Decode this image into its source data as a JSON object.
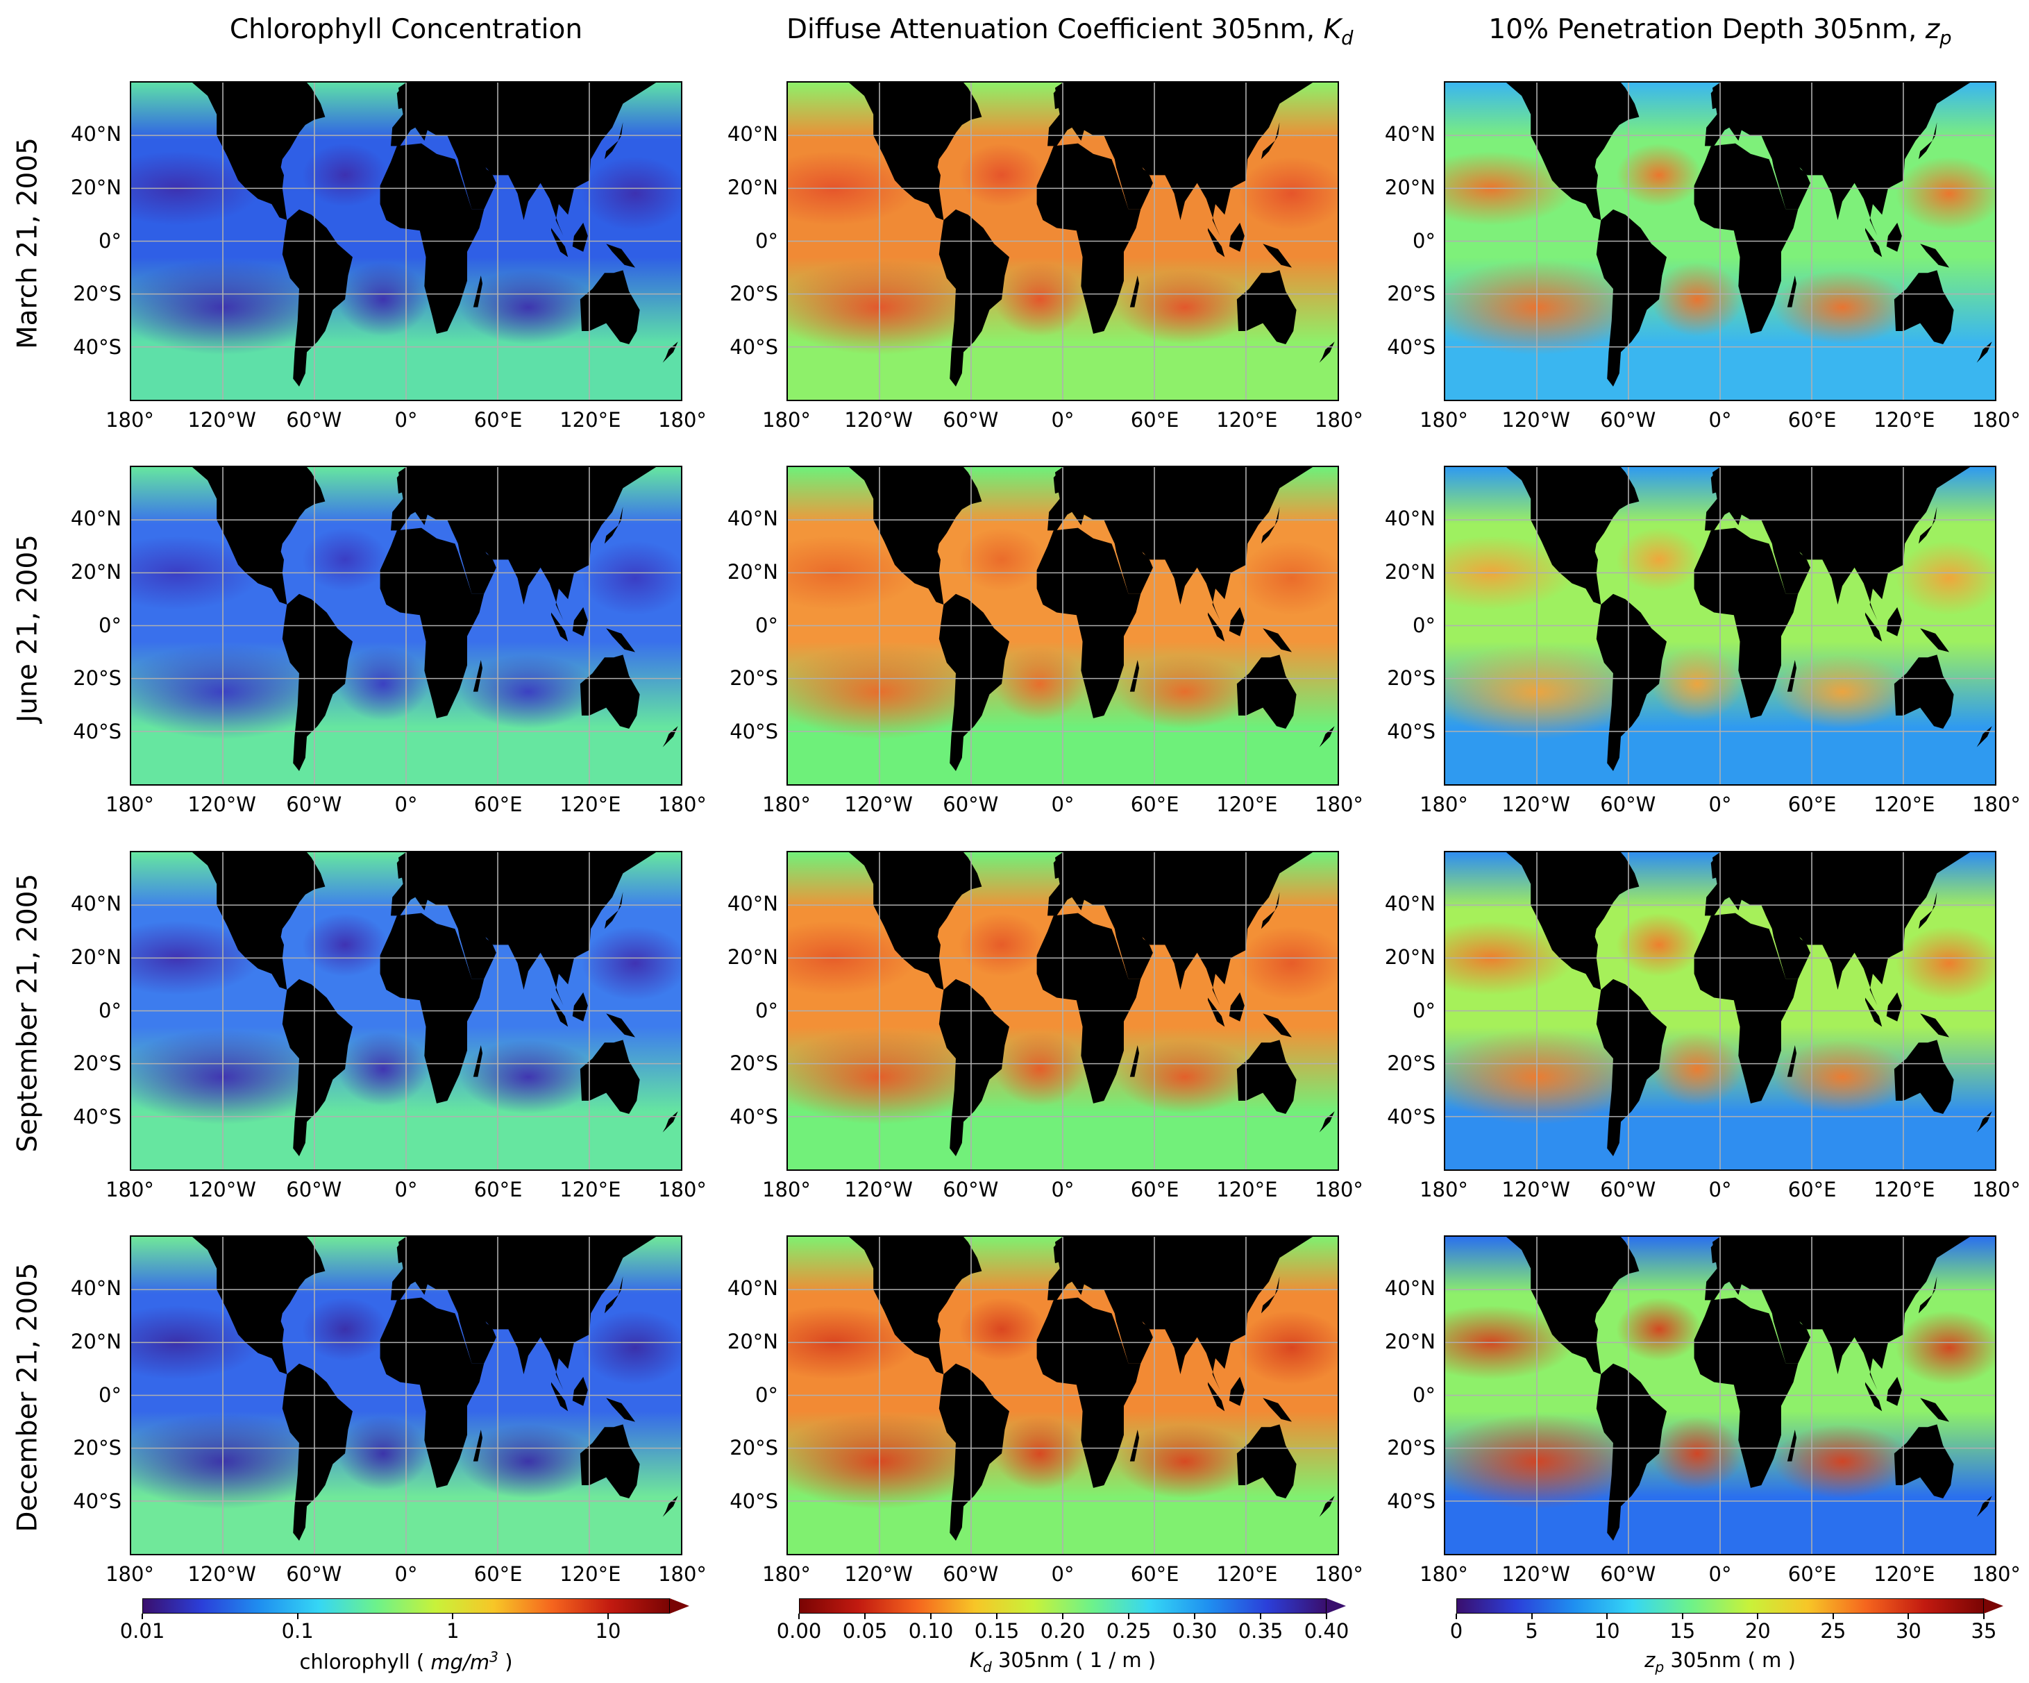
{
  "columns": [
    {
      "title": "Chlorophyll Concentration",
      "title_html": "Chlorophyll Concentration"
    },
    {
      "title": "Diffuse Attenuation Coefficient 305nm, Kd",
      "title_html": "Diffuse Attenuation Coefficient 305nm, <i>K<sub>d</sub></i>"
    },
    {
      "title": "10% Penetration Depth 305nm, zp",
      "title_html": "10% Penetration Depth 305nm, <i>z<sub>p</sub></i>"
    }
  ],
  "rows": [
    {
      "label": "March 21, 2005"
    },
    {
      "label": "June 21, 2005"
    },
    {
      "label": "September 21, 2005"
    },
    {
      "label": "December 21, 2005"
    }
  ],
  "axes": {
    "lat_ticks": [
      "40°N",
      "20°N",
      "0°",
      "20°S",
      "40°S"
    ],
    "lon_ticks": [
      "180°",
      "120°W",
      "60°W",
      "0°",
      "60°E",
      "120°E",
      "180°"
    ]
  },
  "colorbars": [
    {
      "name": "chlorophyll",
      "label_html": "chlorophyll ( <i>mg/m<sup>3</sup></i> )",
      "ticks": [
        "0.01",
        "0.1",
        "1",
        "10"
      ],
      "scale": "log",
      "range": [
        0.01,
        25
      ],
      "colors": [
        "#3a0f6e",
        "#2b3fd9",
        "#1f8ff0",
        "#35d6f5",
        "#6df28a",
        "#c8f23a",
        "#f7c627",
        "#f5651e",
        "#c21a10",
        "#7a0403"
      ],
      "extend": "max"
    },
    {
      "name": "kd",
      "label_html": "<i>K<sub>d</sub></i> 305nm ( 1 / m )",
      "ticks": [
        "0.00",
        "0.05",
        "0.10",
        "0.15",
        "0.20",
        "0.25",
        "0.30",
        "0.35",
        "0.40"
      ],
      "scale": "linear",
      "range": [
        0.0,
        0.4
      ],
      "colors": [
        "#7a0403",
        "#c21a10",
        "#f5651e",
        "#f7c627",
        "#c8f23a",
        "#6df28a",
        "#35d6f5",
        "#1f8ff0",
        "#2b3fd9",
        "#3a0f6e"
      ],
      "extend": "max"
    },
    {
      "name": "zp",
      "label_html": "<i>z<sub>p</sub></i> 305nm ( m )",
      "ticks": [
        "0",
        "5",
        "10",
        "15",
        "20",
        "25",
        "30",
        "35"
      ],
      "scale": "linear",
      "range": [
        0,
        35
      ],
      "colors": [
        "#3a0f6e",
        "#2b3fd9",
        "#1f8ff0",
        "#35d6f5",
        "#6df28a",
        "#c8f23a",
        "#f7c627",
        "#f5651e",
        "#c21a10",
        "#7a0403"
      ],
      "extend": "max"
    }
  ],
  "maps": [
    [
      {
        "ocean": "#2f5fe6",
        "coast": "#5ee0a8",
        "gyre": "#3d2fae"
      },
      {
        "ocean": "#f08a35",
        "coast": "#8ef06a",
        "gyre": "#e5522a"
      },
      {
        "ocean": "#7ef07a",
        "coast": "#3ab6f0",
        "gyre": "#f0702a"
      }
    ],
    [
      {
        "ocean": "#3970ec",
        "coast": "#66e6a0",
        "gyre": "#3a3bc2"
      },
      {
        "ocean": "#f3953a",
        "coast": "#6ef07a",
        "gyre": "#ea6a2a"
      },
      {
        "ocean": "#9ef060",
        "coast": "#2f9af0",
        "gyre": "#f3a33a"
      }
    ],
    [
      {
        "ocean": "#3d7cee",
        "coast": "#66e6a0",
        "gyre": "#3f2fb0"
      },
      {
        "ocean": "#f39036",
        "coast": "#72f07a",
        "gyre": "#e65a28"
      },
      {
        "ocean": "#a6f05a",
        "coast": "#2f8ef0",
        "gyre": "#f17a2c"
      }
    ],
    [
      {
        "ocean": "#3568ea",
        "coast": "#70e89a",
        "gyre": "#3a2ea8"
      },
      {
        "ocean": "#f28a34",
        "coast": "#80f070",
        "gyre": "#d9431f"
      },
      {
        "ocean": "#8ef06a",
        "coast": "#2a70ee",
        "gyre": "#d6401e"
      }
    ]
  ]
}
